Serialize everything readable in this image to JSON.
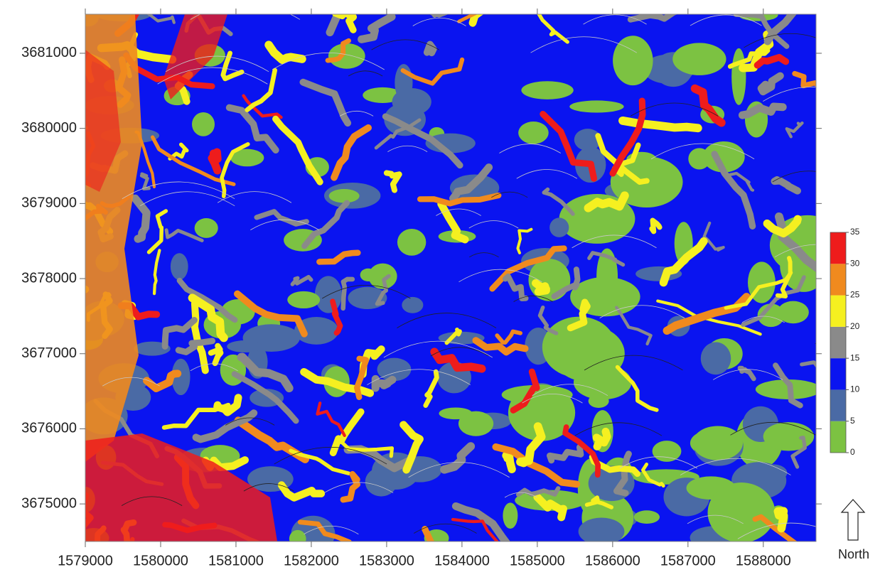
{
  "chart_data": {
    "type": "map",
    "xlim": [
      1579000,
      1588700
    ],
    "ylim": [
      3674500,
      3681520
    ],
    "xticks": [
      1579000,
      1580000,
      1581000,
      1582000,
      1583000,
      1584000,
      1585000,
      1586000,
      1587000,
      1588000
    ],
    "yticks": [
      3675000,
      3676000,
      3677000,
      3678000,
      3679000,
      3680000,
      3681000
    ],
    "colorbar": {
      "ticks": [
        0,
        5,
        10,
        15,
        20,
        25,
        30,
        35
      ],
      "colors": [
        "#7cc242",
        "#4a6aa5",
        "#0a14f0",
        "#8a8a8a",
        "#f5f020",
        "#f08a1e",
        "#ee1c1c"
      ]
    },
    "north_label": "North"
  }
}
